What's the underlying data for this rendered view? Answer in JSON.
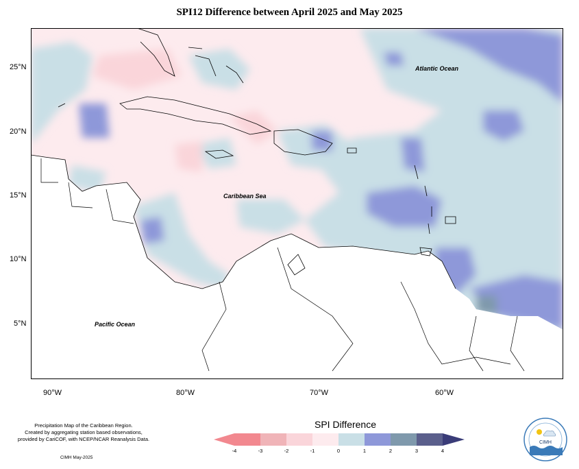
{
  "title": "SPI12 Difference between April 2025 and May 2025",
  "map": {
    "lat_labels": [
      "25°N",
      "20°N",
      "15°N",
      "10°N",
      "5°N"
    ],
    "lon_labels": [
      "90°W",
      "80°W",
      "70°W",
      "60°W"
    ],
    "ocean_labels": {
      "atlantic": "Atlantic Ocean",
      "caribbean": "Caribbean Sea",
      "pacific": "Pacific Ocean"
    }
  },
  "footer": {
    "line1": "Precipitation Map of the Caribbean Region.",
    "line2": "Created by aggregating station based observations,",
    "line3": "provided by CariCOF, with NCEP/NCAR Reanalysis Data.",
    "credit": "CIMH May-2025"
  },
  "legend": {
    "title": "SPI Difference",
    "ticks": [
      "-4",
      "-3",
      "-2",
      "-1",
      "0",
      "1",
      "2",
      "3",
      "4"
    ],
    "colors": [
      "#f2888f",
      "#f0b4b8",
      "#fad5da",
      "#fdebee",
      "#c9dfe6",
      "#8e98d9",
      "#7f99ac",
      "#5b5f8c",
      "#3a3c78"
    ]
  },
  "logo": {
    "text": "CIMH"
  }
}
